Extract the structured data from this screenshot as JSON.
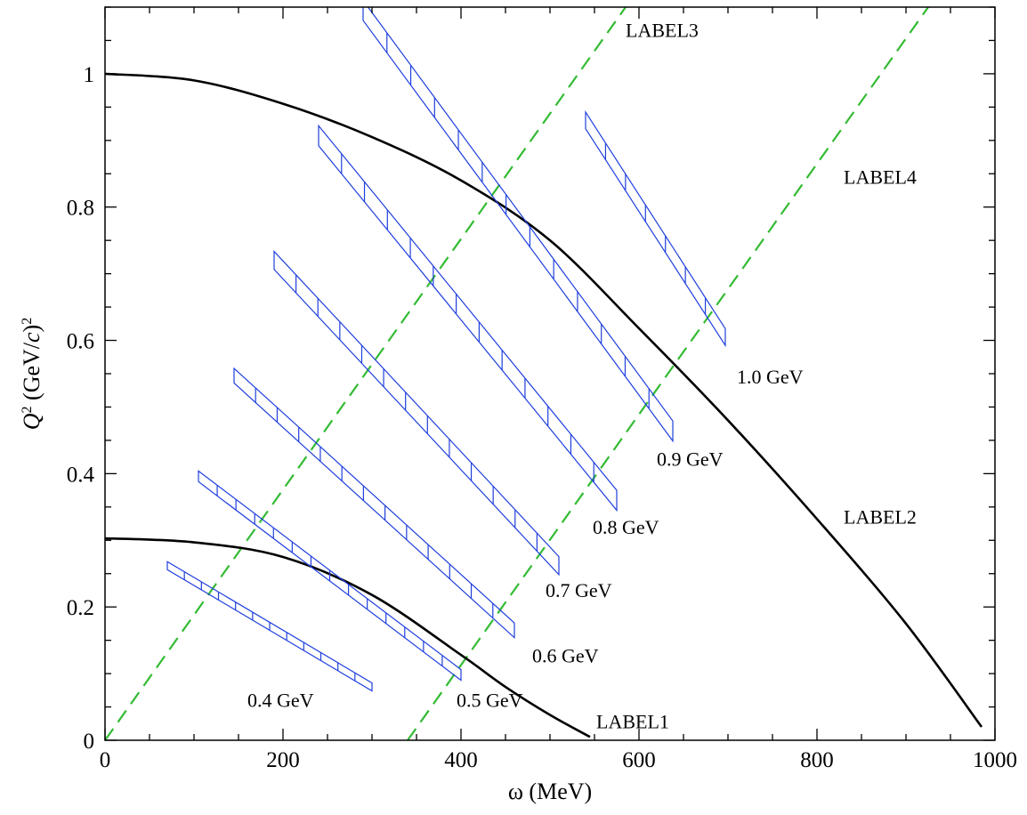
{
  "chart_data": {
    "type": "line",
    "xlabel": "ω (MeV)",
    "ylabel": {
      "q": "Q",
      "sup1": "2",
      "units": " (GeV/",
      "c": "c",
      "close": ")",
      "sup2": "2"
    },
    "xlim": [
      0,
      1000
    ],
    "ylim": [
      0,
      1.1
    ],
    "x_ticks": [
      0,
      200,
      400,
      600,
      800,
      1000
    ],
    "y_ticks": [
      0,
      0.2,
      0.4,
      0.6,
      0.8,
      1
    ],
    "x_tick_labels": [
      "0",
      "200",
      "400",
      "600",
      "800",
      "1000"
    ],
    "y_tick_labels": [
      "0",
      "0.2",
      "0.4",
      "0.6",
      "0.8",
      "1"
    ],
    "grid": false,
    "colors": {
      "curve": "#000000",
      "dashed": "#33bb33",
      "bands": "#1f3fdd"
    },
    "curves": [
      {
        "label": "LABEL1",
        "points": [
          [
            0,
            0.303
          ],
          [
            100,
            0.297
          ],
          [
            200,
            0.275
          ],
          [
            300,
            0.218
          ],
          [
            400,
            0.128
          ],
          [
            450,
            0.08
          ],
          [
            500,
            0.038
          ],
          [
            545,
            0.005
          ]
        ]
      },
      {
        "label": "LABEL2",
        "points": [
          [
            0,
            1.0
          ],
          [
            100,
            0.99
          ],
          [
            200,
            0.955
          ],
          [
            300,
            0.905
          ],
          [
            400,
            0.84
          ],
          [
            500,
            0.75
          ],
          [
            600,
            0.618
          ],
          [
            700,
            0.48
          ],
          [
            800,
            0.332
          ],
          [
            900,
            0.175
          ],
          [
            985,
            0.02
          ]
        ]
      }
    ],
    "dashed_lines": [
      {
        "label": "LABEL3",
        "points": [
          [
            0,
            0.0
          ],
          [
            585,
            1.1
          ]
        ]
      },
      {
        "label": "LABEL4",
        "points": [
          [
            340,
            0.0
          ],
          [
            925,
            1.1
          ]
        ]
      }
    ],
    "bands": [
      {
        "label": "0.4 GeV",
        "from": [
          70,
          0.262
        ],
        "to": [
          300,
          0.08
        ],
        "width": 0.012,
        "dividers": 12
      },
      {
        "label": "0.5 GeV",
        "from": [
          105,
          0.396
        ],
        "to": [
          400,
          0.098
        ],
        "width": 0.016,
        "dividers": 14
      },
      {
        "label": "0.6 GeV",
        "from": [
          145,
          0.547
        ],
        "to": [
          460,
          0.165
        ],
        "width": 0.022,
        "dividers": 13
      },
      {
        "label": "0.7 GeV",
        "from": [
          190,
          0.72
        ],
        "to": [
          510,
          0.262
        ],
        "width": 0.027,
        "dividers": 13
      },
      {
        "label": "0.8 GeV",
        "from": [
          240,
          0.907
        ],
        "to": [
          575,
          0.36
        ],
        "width": 0.03,
        "dividers": 13
      },
      {
        "label": "0.9 GeV",
        "from": [
          290,
          1.095
        ],
        "to": [
          638,
          0.464
        ],
        "width": 0.03,
        "dividers": 13
      },
      {
        "label": "1.0 GeV",
        "from": [
          540,
          0.93
        ],
        "to": [
          697,
          0.605
        ],
        "width": 0.025,
        "dividers": 7
      }
    ],
    "annotations": [
      {
        "text": "0.4 GeV",
        "x": 160,
        "y": 0.05
      },
      {
        "text": "0.5 GeV",
        "x": 395,
        "y": 0.05
      },
      {
        "text": "0.6 GeV",
        "x": 480,
        "y": 0.117
      },
      {
        "text": "0.7 GeV",
        "x": 495,
        "y": 0.215
      },
      {
        "text": "0.8 GeV",
        "x": 548,
        "y": 0.31
      },
      {
        "text": "0.9 GeV",
        "x": 620,
        "y": 0.412
      },
      {
        "text": "1.0 GeV",
        "x": 710,
        "y": 0.535
      },
      {
        "text": "LABEL1",
        "x": 552,
        "y": 0.018
      },
      {
        "text": "LABEL2",
        "x": 830,
        "y": 0.325
      },
      {
        "text": "LABEL3",
        "x": 585,
        "y": 1.055
      },
      {
        "text": "LABEL4",
        "x": 830,
        "y": 0.835
      }
    ]
  }
}
